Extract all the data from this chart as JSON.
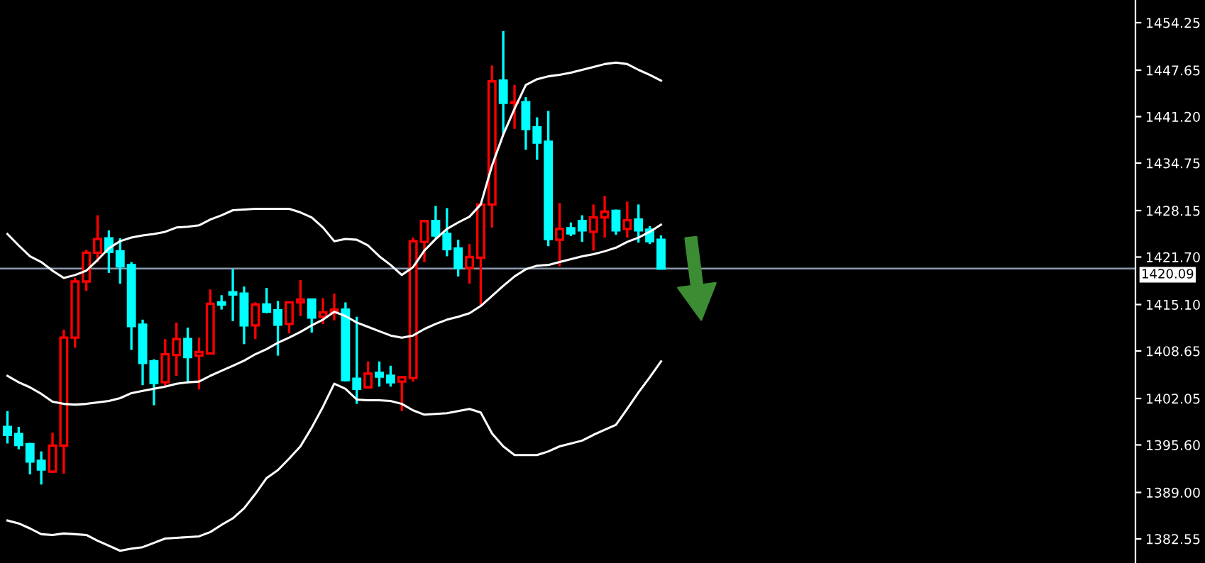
{
  "chart_data": {
    "type": "candlestick",
    "categories": [
      null,
      null,
      null,
      null,
      null,
      null,
      null,
      null,
      null,
      null,
      null,
      null,
      null,
      null,
      null,
      null,
      null,
      null,
      null,
      null,
      null,
      null,
      null,
      null,
      null,
      null,
      null,
      null,
      null,
      null,
      null,
      null,
      null,
      null,
      null,
      null,
      null,
      null,
      null,
      null,
      null,
      null,
      null,
      null,
      null,
      null,
      null,
      null,
      null,
      null,
      null,
      null,
      null,
      null,
      null,
      null,
      null,
      null,
      null
    ],
    "ohlc": [
      [
        1398.1,
        1400.3,
        1395.8,
        1397.0
      ],
      [
        1397.1,
        1398.1,
        1395.0,
        1395.6
      ],
      [
        1395.7,
        1395.9,
        1391.5,
        1393.3
      ],
      [
        1393.4,
        1394.7,
        1390.1,
        1392.2
      ],
      [
        1391.9,
        1397.3,
        1391.7,
        1395.5
      ],
      [
        1395.5,
        1411.6,
        1391.6,
        1410.5
      ],
      [
        1410.5,
        1418.8,
        1409.1,
        1418.3
      ],
      [
        1418.3,
        1422.7,
        1417.0,
        1422.3
      ],
      [
        1422.3,
        1427.5,
        1421.0,
        1424.2
      ],
      [
        1424.3,
        1425.4,
        1419.5,
        1422.4
      ],
      [
        1422.5,
        1424.3,
        1418.0,
        1420.4
      ],
      [
        1420.6,
        1421.0,
        1408.8,
        1412.1
      ],
      [
        1412.3,
        1413.0,
        1403.9,
        1407.0
      ],
      [
        1407.2,
        1407.5,
        1401.1,
        1404.2
      ],
      [
        1404.3,
        1410.3,
        1403.8,
        1408.2
      ],
      [
        1408.1,
        1412.6,
        1405.2,
        1410.3
      ],
      [
        1410.3,
        1411.9,
        1404.4,
        1407.8
      ],
      [
        1408.0,
        1410.5,
        1403.3,
        1408.5
      ],
      [
        1408.3,
        1417.2,
        1408.3,
        1415.2
      ],
      [
        1415.4,
        1416.4,
        1414.4,
        1415.1
      ],
      [
        1416.8,
        1420.0,
        1412.8,
        1416.5
      ],
      [
        1416.6,
        1417.6,
        1409.6,
        1412.2
      ],
      [
        1412.2,
        1415.4,
        1410.3,
        1415.1
      ],
      [
        1415.1,
        1417.4,
        1413.9,
        1414.1
      ],
      [
        1414.3,
        1415.6,
        1408.0,
        1412.3
      ],
      [
        1412.4,
        1415.4,
        1411.1,
        1415.4
      ],
      [
        1415.4,
        1418.5,
        1413.5,
        1415.8
      ],
      [
        1415.8,
        1415.9,
        1411.2,
        1413.3
      ],
      [
        1413.4,
        1416.0,
        1412.4,
        1414.0
      ],
      [
        1414.0,
        1416.6,
        1412.9,
        1414.4
      ],
      [
        1414.4,
        1415.4,
        1404.4,
        1404.6
      ],
      [
        1404.8,
        1413.4,
        1401.3,
        1403.4
      ],
      [
        1403.6,
        1407.2,
        1403.6,
        1405.5
      ],
      [
        1405.6,
        1407.2,
        1403.7,
        1405.1
      ],
      [
        1405.2,
        1406.6,
        1403.7,
        1404.3
      ],
      [
        1404.4,
        1405.1,
        1400.3,
        1405.0
      ],
      [
        1404.9,
        1424.4,
        1404.4,
        1423.9
      ],
      [
        1423.8,
        1426.8,
        1421.0,
        1426.7
      ],
      [
        1426.7,
        1428.8,
        1424.4,
        1424.7
      ],
      [
        1424.9,
        1428.5,
        1421.8,
        1422.8
      ],
      [
        1422.9,
        1424.1,
        1419.0,
        1420.2
      ],
      [
        1420.2,
        1423.5,
        1418.0,
        1421.7
      ],
      [
        1421.6,
        1429.1,
        1415.0,
        1429.0
      ],
      [
        1429.0,
        1448.3,
        1425.8,
        1446.1
      ],
      [
        1446.2,
        1453.1,
        1438.7,
        1443.1
      ],
      [
        1443.1,
        1445.6,
        1439.5,
        1443.2
      ],
      [
        1443.2,
        1443.9,
        1436.6,
        1439.5
      ],
      [
        1439.7,
        1441.1,
        1435.2,
        1437.6
      ],
      [
        1437.7,
        1442.0,
        1423.2,
        1424.2
      ],
      [
        1424.1,
        1429.2,
        1420.4,
        1425.6
      ],
      [
        1425.7,
        1426.5,
        1424.6,
        1425.0
      ],
      [
        1426.7,
        1427.5,
        1423.8,
        1425.4
      ],
      [
        1425.2,
        1429.0,
        1422.6,
        1427.2
      ],
      [
        1427.2,
        1430.2,
        1424.4,
        1428.0
      ],
      [
        1428.1,
        1428.3,
        1424.8,
        1425.4
      ],
      [
        1425.6,
        1429.4,
        1424.4,
        1426.8
      ],
      [
        1426.9,
        1429.0,
        1423.7,
        1425.4
      ],
      [
        1425.5,
        1426.0,
        1423.5,
        1423.9
      ],
      [
        1424.1,
        1424.7,
        1420.1,
        1420.1
      ]
    ],
    "colors": [
      "#00ffff",
      "#00ffff",
      "#00ffff",
      "#00ffff",
      "#ff0000",
      "#ff0000",
      "#ff0000",
      "#ff0000",
      "#ff0000",
      "#00ffff",
      "#00ffff",
      "#00ffff",
      "#00ffff",
      "#00ffff",
      "#ff0000",
      "#ff0000",
      "#00ffff",
      "#ff0000",
      "#ff0000",
      "#00ffff",
      "#00ffff",
      "#00ffff",
      "#ff0000",
      "#00ffff",
      "#00ffff",
      "#ff0000",
      "#ff0000",
      "#00ffff",
      "#ff0000",
      "#ff0000",
      "#00ffff",
      "#00ffff",
      "#ff0000",
      "#00ffff",
      "#00ffff",
      "#ff0000",
      "#ff0000",
      "#ff0000",
      "#00ffff",
      "#00ffff",
      "#00ffff",
      "#ff0000",
      "#ff0000",
      "#ff0000",
      "#00ffff",
      "#ff0000",
      "#00ffff",
      "#00ffff",
      "#00ffff",
      "#ff0000",
      "#00ffff",
      "#00ffff",
      "#ff0000",
      "#ff0000",
      "#00ffff",
      "#ff0000",
      "#00ffff",
      "#00ffff",
      "#00ffff"
    ],
    "series": [
      {
        "type": "line",
        "color": "#ffffff",
        "values": [
          1424.9,
          1423.3,
          1421.8,
          1421.0,
          1419.8,
          1418.8,
          1419.2,
          1419.8,
          1421.3,
          1422.9,
          1423.9,
          1424.4,
          1424.7,
          1424.9,
          1425.2,
          1425.8,
          1425.9,
          1426.1,
          1426.9,
          1427.5,
          1428.2,
          1428.3,
          1428.4,
          1428.4,
          1428.4,
          1428.4,
          1427.9,
          1427.2,
          1425.8,
          1423.9,
          1424.2,
          1424.1,
          1423.3,
          1421.8,
          1420.6,
          1419.2,
          1420.3,
          1422.6,
          1424.2,
          1425.6,
          1426.5,
          1427.3,
          1429.0,
          1434.4,
          1438.7,
          1442.3,
          1445.6,
          1446.4,
          1446.8,
          1447.0,
          1447.3,
          1447.7,
          1448.1,
          1448.5,
          1448.7,
          1448.5,
          1447.7,
          1447.0,
          1446.2
        ]
      },
      {
        "type": "line",
        "color": "#ffffff",
        "values": [
          1405.2,
          1404.3,
          1403.6,
          1402.7,
          1401.6,
          1401.3,
          1401.2,
          1401.3,
          1401.5,
          1401.7,
          1402.1,
          1402.8,
          1403.1,
          1403.4,
          1403.7,
          1404.1,
          1404.3,
          1404.4,
          1405.2,
          1405.9,
          1406.6,
          1407.3,
          1408.2,
          1408.9,
          1409.8,
          1410.5,
          1411.3,
          1412.2,
          1413.0,
          1414.1,
          1413.5,
          1412.6,
          1412.0,
          1411.4,
          1410.8,
          1410.5,
          1410.8,
          1411.7,
          1412.4,
          1413.0,
          1413.4,
          1413.9,
          1414.9,
          1416.3,
          1417.7,
          1419.0,
          1420.0,
          1420.5,
          1420.6,
          1421.0,
          1421.4,
          1421.8,
          1422.1,
          1422.5,
          1423.0,
          1423.8,
          1424.4,
          1425.2,
          1426.2
        ]
      },
      {
        "type": "line",
        "color": "#ffffff",
        "values": [
          1385.1,
          1384.7,
          1384.0,
          1383.2,
          1383.1,
          1383.3,
          1383.2,
          1383.1,
          1382.3,
          1381.6,
          1380.9,
          1381.2,
          1381.4,
          1382.0,
          1382.6,
          1382.7,
          1382.8,
          1382.9,
          1383.5,
          1384.5,
          1385.4,
          1386.8,
          1388.8,
          1391.0,
          1392.1,
          1393.7,
          1395.4,
          1398.0,
          1400.9,
          1404.1,
          1403.4,
          1401.9,
          1401.8,
          1401.8,
          1401.7,
          1401.3,
          1400.4,
          1399.8,
          1399.9,
          1400.0,
          1400.3,
          1400.6,
          1400.1,
          1397.2,
          1395.4,
          1394.2,
          1394.2,
          1394.2,
          1394.7,
          1395.4,
          1395.8,
          1396.2,
          1397.0,
          1397.7,
          1398.4,
          1400.6,
          1402.9,
          1405.0,
          1407.2
        ]
      }
    ],
    "ylim": [
      1379.2,
      1457.4
    ],
    "yticks": [
      {
        "value": 1454.25,
        "label": "1454.25"
      },
      {
        "value": 1447.65,
        "label": "1447.65"
      },
      {
        "value": 1441.2,
        "label": "1441.20"
      },
      {
        "value": 1434.75,
        "label": "1434.75"
      },
      {
        "value": 1428.15,
        "label": "1428.15"
      },
      {
        "value": 1421.7,
        "label": "1421.70"
      },
      {
        "value": 1415.1,
        "label": "1415.10"
      },
      {
        "value": 1408.65,
        "label": "1408.65"
      },
      {
        "value": 1402.05,
        "label": "1402.05"
      },
      {
        "value": 1395.6,
        "label": "1395.60"
      },
      {
        "value": 1389.0,
        "label": "1389.00"
      },
      {
        "value": 1382.55,
        "label": "1382.55"
      }
    ],
    "tick_labels": "y",
    "grid": false,
    "legend": false,
    "ref_lines": [
      {
        "axis": "y",
        "value": 1420.09,
        "label": "1420.09",
        "color": "#8a9bb0"
      }
    ]
  }
}
